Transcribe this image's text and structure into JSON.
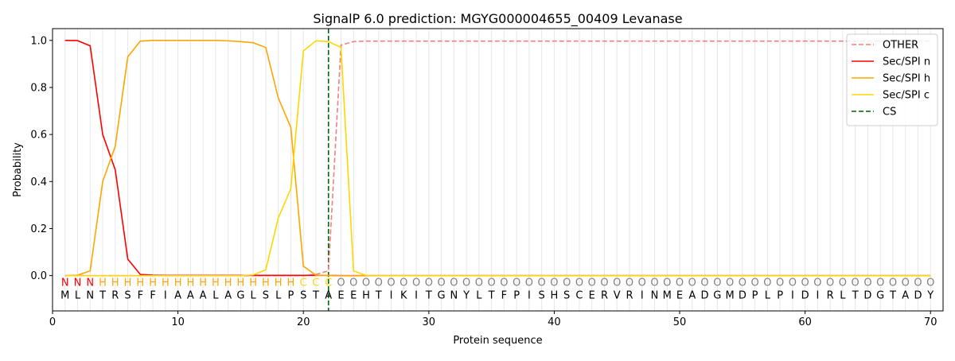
{
  "chart_data": {
    "type": "line",
    "title": "SignalP 6.0 prediction: MGYG000004655_00409 Levanase",
    "xlabel": "Protein sequence",
    "ylabel": "Probability",
    "xlim": [
      0,
      71
    ],
    "ylim": [
      -0.15,
      1.05
    ],
    "x_ticks": [
      0,
      10,
      20,
      30,
      40,
      50,
      60,
      70
    ],
    "y_ticks": [
      0.0,
      0.2,
      0.4,
      0.6,
      0.8,
      1.0
    ],
    "x_tick_labels": [
      "0",
      "10",
      "20",
      "30",
      "40",
      "50",
      "60",
      "70"
    ],
    "y_tick_labels": [
      "0.0",
      "0.2",
      "0.4",
      "0.6",
      "0.8",
      "1.0"
    ],
    "grid": "vertical lines at every residue",
    "legend_position": "top-right",
    "sequence": "MLNTRSFFIAAALAGLSLPSTAEEHTIKITGNYLTFPISHSCERVRINMEADGMDPLPIDIRLTDGTADY",
    "labels": "NNNHHHHHHHHHHHHHHHHCCCOOOOOOOOOOOOOOOOOOOOOOOOOOOOOOOOOOOOOOOOOOOOOOOO",
    "label_colors": {
      "N": "#ff0000",
      "H": "#ffa500",
      "C": "#ffd700",
      "O": "#808080"
    },
    "cleavage_site": 22,
    "series": [
      {
        "name": "OTHER",
        "color": "#f08080",
        "dash": "dashed",
        "values": [
          0,
          0,
          0,
          0,
          0,
          0,
          0,
          0,
          0,
          0,
          0,
          0,
          0,
          0,
          0,
          0,
          0,
          0,
          0,
          0,
          0.005,
          0.02,
          0.98,
          0.995,
          0.997,
          0.997,
          0.997,
          0.997,
          0.997,
          0.997,
          0.997,
          0.997,
          0.997,
          0.997,
          0.997,
          0.997,
          0.997,
          0.997,
          0.997,
          0.997,
          0.997,
          0.997,
          0.997,
          0.997,
          0.997,
          0.997,
          0.997,
          0.997,
          0.997,
          0.997,
          0.997,
          0.997,
          0.997,
          0.997,
          0.997,
          0.997,
          0.997,
          0.997,
          0.997,
          0.997,
          0.997,
          0.997,
          0.997,
          0.997,
          0.997,
          0.997,
          0.997,
          0.997,
          0.997,
          0.997
        ]
      },
      {
        "name": "Sec/SPI n",
        "color": "#ff0000",
        "dash": "solid",
        "values": [
          1.0,
          0.999,
          0.977,
          0.6,
          0.45,
          0.07,
          0.005,
          0.002,
          0.001,
          0.001,
          0.001,
          0.001,
          0.001,
          0.001,
          0.001,
          0.001,
          0.001,
          0.001,
          0.001,
          0.001,
          0.001,
          0.001,
          0,
          0,
          0,
          0,
          0,
          0,
          0,
          0,
          0,
          0,
          0,
          0,
          0,
          0,
          0,
          0,
          0,
          0,
          0,
          0,
          0,
          0,
          0,
          0,
          0,
          0,
          0,
          0,
          0,
          0,
          0,
          0,
          0,
          0,
          0,
          0,
          0,
          0,
          0,
          0,
          0,
          0,
          0,
          0,
          0,
          0,
          0,
          0
        ]
      },
      {
        "name": "Sec/SPI h",
        "color": "#ffa500",
        "dash": "solid",
        "values": [
          0,
          0.002,
          0.02,
          0.4,
          0.55,
          0.93,
          0.997,
          1.0,
          1.0,
          1.0,
          1.0,
          1.0,
          1.0,
          0.998,
          0.995,
          0.99,
          0.97,
          0.755,
          0.63,
          0.04,
          0.002,
          0.001,
          0,
          0,
          0,
          0,
          0,
          0,
          0,
          0,
          0,
          0,
          0,
          0,
          0,
          0,
          0,
          0,
          0,
          0,
          0,
          0,
          0,
          0,
          0,
          0,
          0,
          0,
          0,
          0,
          0,
          0,
          0,
          0,
          0,
          0,
          0,
          0,
          0,
          0,
          0,
          0,
          0,
          0,
          0,
          0,
          0,
          0,
          0,
          0
        ]
      },
      {
        "name": "Sec/SPI c",
        "color": "#ffd700",
        "dash": "solid",
        "values": [
          0,
          0,
          0,
          0,
          0,
          0,
          0,
          0,
          0,
          0,
          0,
          0,
          0,
          0,
          0,
          0.003,
          0.025,
          0.245,
          0.37,
          0.955,
          0.998,
          0.995,
          0.97,
          0.02,
          0.001,
          0,
          0,
          0,
          0,
          0,
          0,
          0,
          0,
          0,
          0,
          0,
          0,
          0,
          0,
          0,
          0,
          0,
          0,
          0,
          0,
          0,
          0,
          0,
          0,
          0,
          0,
          0,
          0,
          0,
          0,
          0,
          0,
          0,
          0,
          0,
          0,
          0,
          0,
          0,
          0,
          0,
          0,
          0,
          0,
          0
        ]
      }
    ],
    "cs_line": {
      "name": "CS",
      "color": "#006400",
      "dash": "dashed",
      "x": 22
    }
  }
}
